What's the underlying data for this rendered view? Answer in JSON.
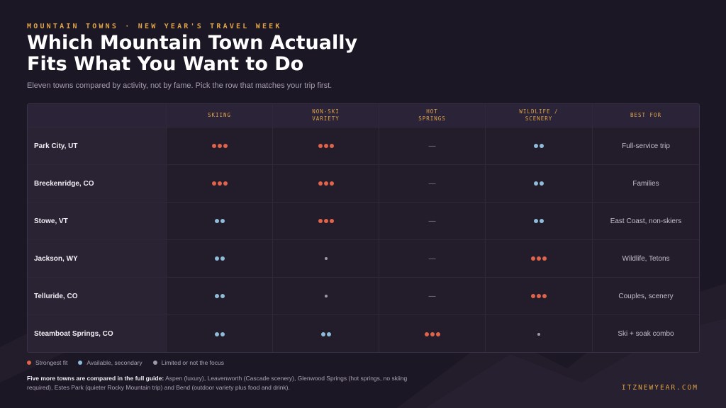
{
  "eyebrow": "MOUNTAIN TOWNS · NEW YEAR'S TRAVEL WEEK",
  "title": "Which Mountain Town Actually Fits What You Want to Do",
  "subtitle": "Eleven towns compared by activity, not by fame. Pick the row that matches your trip first.",
  "table": {
    "columns": [
      "",
      "SKIING",
      "NON-SKI\nVARIETY",
      "HOT\nSPRINGS",
      "WILDLIFE /\nSCENERY",
      "BEST FOR"
    ],
    "rows": [
      {
        "town": "Park City, UT",
        "ratings": [
          "strong",
          "strong",
          "none",
          "avail"
        ],
        "best_for": "Full-service trip"
      },
      {
        "town": "Breckenridge, CO",
        "ratings": [
          "strong",
          "strong",
          "none",
          "avail"
        ],
        "best_for": "Families"
      },
      {
        "town": "Stowe, VT",
        "ratings": [
          "avail",
          "strong",
          "none",
          "avail"
        ],
        "best_for": "East Coast, non-skiers"
      },
      {
        "town": "Jackson, WY",
        "ratings": [
          "avail",
          "limited",
          "none",
          "strong"
        ],
        "best_for": "Wildlife, Tetons"
      },
      {
        "town": "Telluride, CO",
        "ratings": [
          "avail",
          "limited",
          "none",
          "strong"
        ],
        "best_for": "Couples, scenery"
      },
      {
        "town": "Steamboat Springs, CO",
        "ratings": [
          "avail",
          "avail",
          "strong",
          "limited"
        ],
        "best_for": "Ski + soak combo"
      }
    ],
    "dash": "—"
  },
  "legend": {
    "strong": "Strongest fit",
    "avail": "Available, secondary",
    "limited": "Limited or not the focus"
  },
  "footnote": {
    "lead": "Five more towns are compared in the full guide:",
    "text": " Aspen (luxury), Leavenworth (Cascade scenery), Glenwood Springs (hot springs, no skiing required), Estes Park (quieter Rocky Mountain trip) and Bend (outdoor variety plus food and drink)."
  },
  "site": "ITZNEWYEAR.COM",
  "colors": {
    "background": "#1c1725",
    "accent": "#e0a448",
    "strong": "#e0634a",
    "available": "#8fbcd9",
    "limited": "#9f98ab"
  }
}
